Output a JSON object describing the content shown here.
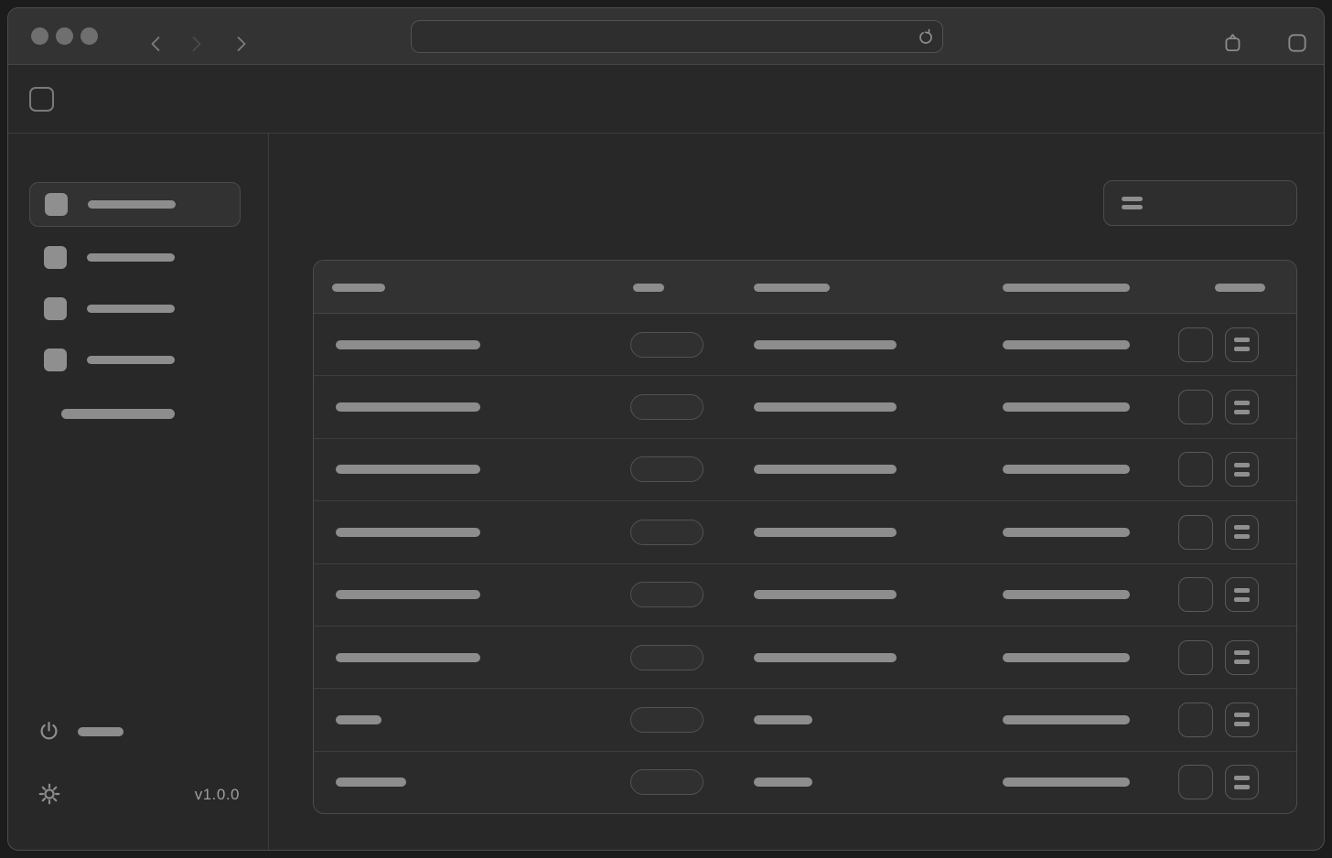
{
  "theme": {
    "skeleton_fill": "#8d8d8d",
    "window_surface": "#282828",
    "titlebar_surface": "#333333",
    "row_surface": "#2b2b2b",
    "header_surface": "#323232",
    "border": "#4b4b4b",
    "version_text_color": "#9e9e9e"
  },
  "titlebar": {
    "traffic_lights": [
      {
        "name": "close"
      },
      {
        "name": "minimize"
      },
      {
        "name": "zoom"
      }
    ],
    "icons": {
      "back": "chevron-left",
      "forward_disabled": "chevron-right",
      "next": "chevron-right",
      "reload": "clockwise-circle-arrow",
      "share": "box-with-caret",
      "new_tab": "rounded-square"
    },
    "url": {
      "value": "",
      "placeholder": ""
    }
  },
  "app_header": {
    "logo": "rounded-square-outline"
  },
  "sidebar": {
    "nav_items": [
      {
        "icon": "square-placeholder",
        "label_w": 96,
        "active": true
      },
      {
        "icon": "square-placeholder",
        "label_w": 96,
        "active": false
      },
      {
        "icon": "square-placeholder",
        "label_w": 96,
        "active": false
      },
      {
        "icon": "square-placeholder",
        "label_w": 96,
        "active": false
      }
    ],
    "section_label_w": 124,
    "logout": {
      "icon": "power-symbol",
      "label_w": 50
    },
    "theme_toggle_icon": "sun",
    "version": "v1.0.0"
  },
  "main": {
    "filter_button": {
      "icon": "double-bar"
    },
    "table": {
      "header_widths": [
        58,
        34,
        83,
        139,
        55
      ],
      "row_badge": {
        "shape": "pill-outline",
        "w": 80
      },
      "row_actions": [
        {
          "icon": "empty-square-button"
        },
        {
          "icon": "double-bar-menu"
        }
      ],
      "rows": [
        {
          "c1": 158,
          "c3": 156,
          "c4": 139
        },
        {
          "c1": 158,
          "c3": 156,
          "c4": 139
        },
        {
          "c1": 158,
          "c3": 156,
          "c4": 139
        },
        {
          "c1": 158,
          "c3": 156,
          "c4": 139
        },
        {
          "c1": 158,
          "c3": 156,
          "c4": 139
        },
        {
          "c1": 158,
          "c3": 156,
          "c4": 139
        },
        {
          "c1": 50,
          "c3": 64,
          "c4": 139
        },
        {
          "c1": 77,
          "c3": 64,
          "c4": 139
        }
      ]
    }
  }
}
